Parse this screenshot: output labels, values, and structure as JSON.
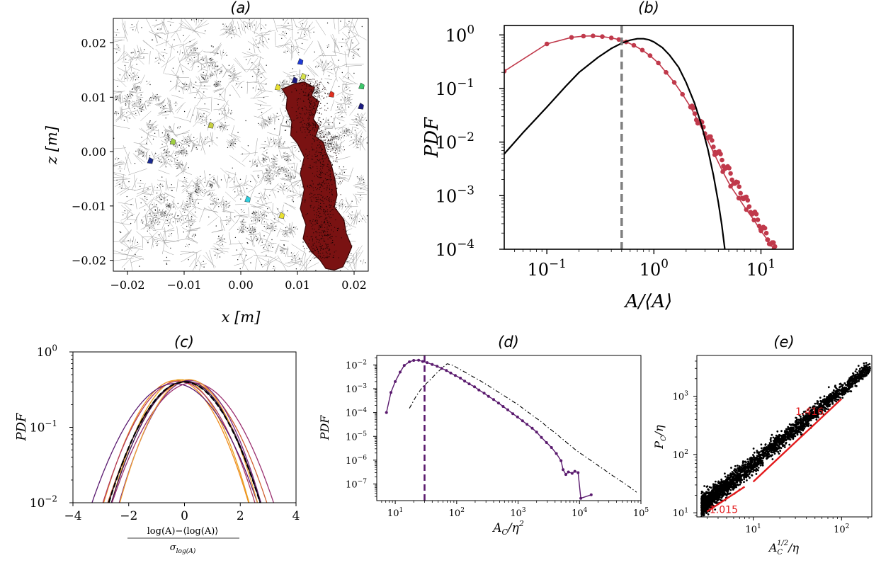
{
  "chart_data": [
    {
      "id": "a",
      "type": "scatter",
      "title": "(a)",
      "xlabel": "x [m]",
      "ylabel": "z [m]",
      "xlim": [
        -0.0225,
        0.0225
      ],
      "ylim": [
        -0.022,
        0.0245
      ],
      "xticks": [
        -0.02,
        -0.01,
        0.0,
        0.01,
        0.02
      ],
      "xtick_labels": [
        "−0.02",
        "−0.01",
        "0.00",
        "0.01",
        "0.02"
      ],
      "yticks": [
        -0.02,
        -0.01,
        0.0,
        0.01,
        0.02
      ],
      "ytick_labels": [
        "−0.02",
        "−0.01",
        "0.00",
        "0.01",
        "0.02"
      ],
      "colors": {
        "cluster": "#7a1212",
        "cluster_edge": "#3a0606"
      },
      "cluster_outline": [
        [
          0.0073,
          0.0115
        ],
        [
          0.0095,
          0.0125
        ],
        [
          0.0112,
          0.0128
        ],
        [
          0.013,
          0.0118
        ],
        [
          0.0125,
          0.0103
        ],
        [
          0.0138,
          0.0092
        ],
        [
          0.0133,
          0.0075
        ],
        [
          0.0128,
          0.006
        ],
        [
          0.0138,
          0.0046
        ],
        [
          0.0132,
          0.0028
        ],
        [
          0.0146,
          0.0017
        ],
        [
          0.015,
          0.0
        ],
        [
          0.016,
          -0.0025
        ],
        [
          0.0166,
          -0.005
        ],
        [
          0.017,
          -0.008
        ],
        [
          0.0165,
          -0.0102
        ],
        [
          0.0182,
          -0.0125
        ],
        [
          0.0186,
          -0.015
        ],
        [
          0.0196,
          -0.0175
        ],
        [
          0.0188,
          -0.0195
        ],
        [
          0.018,
          -0.0212
        ],
        [
          0.0165,
          -0.0218
        ],
        [
          0.015,
          -0.0215
        ],
        [
          0.014,
          -0.02
        ],
        [
          0.0125,
          -0.0185
        ],
        [
          0.011,
          -0.016
        ],
        [
          0.0115,
          -0.0135
        ],
        [
          0.0105,
          -0.0105
        ],
        [
          0.0112,
          -0.007
        ],
        [
          0.0105,
          -0.004
        ],
        [
          0.0112,
          -0.001
        ],
        [
          0.01,
          0.0015
        ],
        [
          0.0088,
          0.003
        ],
        [
          0.009,
          0.0055
        ],
        [
          0.008,
          0.008
        ],
        [
          0.0082,
          0.01
        ]
      ],
      "small_clusters": [
        {
          "x": 0.0105,
          "y": 0.0165,
          "color": "#1f3ad6"
        },
        {
          "x": 0.0095,
          "y": 0.0131,
          "color": "#1a1a80"
        },
        {
          "x": 0.011,
          "y": 0.0138,
          "color": "#d8e44a"
        },
        {
          "x": 0.016,
          "y": 0.0105,
          "color": "#e03020"
        },
        {
          "x": 0.0213,
          "y": 0.012,
          "color": "#3cc86a"
        },
        {
          "x": 0.0212,
          "y": 0.0083,
          "color": "#1a1a80"
        },
        {
          "x": 0.0065,
          "y": 0.0118,
          "color": "#e8e030"
        },
        {
          "x": -0.0053,
          "y": 0.0048,
          "color": "#c8d040"
        },
        {
          "x": -0.012,
          "y": 0.0018,
          "color": "#a0d040"
        },
        {
          "x": -0.016,
          "y": -0.0017,
          "color": "#1a2a90"
        },
        {
          "x": 0.0012,
          "y": -0.0088,
          "color": "#30d0e0"
        },
        {
          "x": 0.0072,
          "y": -0.0118,
          "color": "#e8e030"
        }
      ]
    },
    {
      "id": "b",
      "type": "line",
      "title": "(b)",
      "xlabel": "A/⟨A⟩",
      "ylabel": "PDF",
      "xscale": "log",
      "yscale": "log",
      "xlim": [
        0.04,
        20
      ],
      "ylim": [
        0.0001,
        1.5
      ],
      "xticks": [
        0.1,
        1,
        10
      ],
      "xtick_labels": [
        [
          "10",
          "−1"
        ],
        [
          "10",
          "0"
        ],
        [
          "10",
          "1"
        ]
      ],
      "yticks": [
        0.0001,
        0.001,
        0.01,
        0.1,
        1
      ],
      "ytick_labels": [
        [
          "10",
          "−4"
        ],
        [
          "10",
          "−3"
        ],
        [
          "10",
          "−2"
        ],
        [
          "10",
          "−1"
        ],
        [
          "10",
          "0"
        ]
      ],
      "vline": 0.5,
      "colors": {
        "data": "#c0394b",
        "fit": "#000000",
        "vline": "#7f7f7f"
      },
      "series": [
        {
          "name": "data",
          "x": [
            0.04,
            0.1,
            0.17,
            0.22,
            0.27,
            0.33,
            0.4,
            0.47,
            0.55,
            0.65,
            0.78,
            0.92,
            1.1,
            1.3,
            1.55,
            1.85,
            2.2,
            2.6,
            3.1,
            3.7,
            4.4,
            5.2,
            6.2,
            7.3,
            8.6,
            10.0,
            11.5,
            13.2
          ],
          "y": [
            0.21,
            0.68,
            0.9,
            0.95,
            0.96,
            0.93,
            0.88,
            0.82,
            0.74,
            0.64,
            0.52,
            0.41,
            0.3,
            0.2,
            0.13,
            0.078,
            0.045,
            0.024,
            0.012,
            0.0058,
            0.0028,
            0.0015,
            0.0009,
            0.00055,
            0.00035,
            0.00022,
            0.00015,
            0.0001
          ]
        },
        {
          "name": "fit",
          "x": [
            0.04,
            0.06,
            0.1,
            0.15,
            0.2,
            0.3,
            0.4,
            0.5,
            0.6,
            0.7,
            0.8,
            0.9,
            1.0,
            1.2,
            1.4,
            1.7,
            2.0,
            2.4,
            2.8,
            3.2,
            3.6,
            4.0,
            4.3,
            4.6
          ],
          "y": [
            0.006,
            0.015,
            0.045,
            0.11,
            0.2,
            0.38,
            0.56,
            0.7,
            0.8,
            0.85,
            0.85,
            0.81,
            0.74,
            0.58,
            0.42,
            0.25,
            0.13,
            0.053,
            0.02,
            0.0072,
            0.0024,
            0.00075,
            0.00029,
            0.0001
          ]
        }
      ]
    },
    {
      "id": "c",
      "type": "line",
      "title": "(c)",
      "xlabel_num": "log(A)−⟨log(A)⟩",
      "xlabel_den": "σ",
      "xlabel_den_sub": "log(A)",
      "ylabel": "PDF",
      "yscale": "log",
      "xlim": [
        -4,
        4
      ],
      "ylim": [
        0.01,
        1
      ],
      "xticks": [
        -4,
        -2,
        0,
        2,
        4
      ],
      "xtick_labels": [
        "−4",
        "−2",
        "0",
        "2",
        "4"
      ],
      "yticks": [
        0.01,
        0.1,
        1
      ],
      "ytick_labels": [
        [
          "10",
          "−2"
        ],
        [
          "10",
          "−1"
        ],
        [
          "10",
          "0"
        ]
      ],
      "series": [
        {
          "name": "s1",
          "color": "#f08c1e",
          "mean": -0.3,
          "sigma": 0.95,
          "amp": 0.42
        },
        {
          "name": "s2",
          "color": "#e8a020",
          "mean": -0.15,
          "sigma": 0.9,
          "amp": 0.43
        },
        {
          "name": "s3",
          "color": "#d06030",
          "mean": 0.1,
          "sigma": 1.05,
          "amp": 0.4
        },
        {
          "name": "s4",
          "color": "#b03a60",
          "mean": -0.2,
          "sigma": 1.0,
          "amp": 0.41
        },
        {
          "name": "s5",
          "color": "#7a2a80",
          "mean": 0.2,
          "sigma": 0.93,
          "amp": 0.42
        },
        {
          "name": "s6",
          "color": "#5a1a70",
          "mean": -0.35,
          "sigma": 1.1,
          "amp": 0.38
        },
        {
          "name": "s7",
          "color": "#3a0f50",
          "mean": 0.05,
          "sigma": 0.98,
          "amp": 0.41
        },
        {
          "name": "s8",
          "color": "#9a3070",
          "mean": 0.3,
          "sigma": 1.07,
          "amp": 0.39
        },
        {
          "name": "s9",
          "color": "#f0a030",
          "mean": 0.15,
          "sigma": 0.9,
          "amp": 0.43
        },
        {
          "name": "s10",
          "color": "#1a1020",
          "mean": 0.0,
          "sigma": 1.0,
          "amp": 0.4
        },
        {
          "name": "gaussian",
          "color": "#000000",
          "dashed": true,
          "mean": 0.0,
          "sigma": 1.0,
          "amp": 0.399
        }
      ]
    },
    {
      "id": "d",
      "type": "line",
      "title": "(d)",
      "xlabel": "A",
      "xlabel_sub": "C",
      "xlabel_rest": "/η",
      "xlabel_sup": "2",
      "ylabel": "PDF",
      "xscale": "log",
      "yscale": "log",
      "xlim": [
        5,
        100000
      ],
      "ylim": [
        2e-08,
        0.025
      ],
      "xticks": [
        10,
        100,
        1000,
        10000,
        100000
      ],
      "xtick_labels": [
        [
          "10",
          "1"
        ],
        [
          "10",
          "2"
        ],
        [
          "10",
          "3"
        ],
        [
          "10",
          "4"
        ],
        [
          "10",
          "5"
        ]
      ],
      "yticks": [
        1e-07,
        1e-06,
        1e-05,
        0.0001,
        0.001,
        0.01
      ],
      "ytick_labels": [
        [
          "10",
          "−7"
        ],
        [
          "10",
          "−6"
        ],
        [
          "10",
          "−5"
        ],
        [
          "10",
          "−4"
        ],
        [
          "10",
          "−3"
        ],
        [
          "10",
          "−2"
        ]
      ],
      "vline": 30,
      "colors": {
        "data": "#5a1a6e",
        "dashdot": "#000000"
      },
      "series": [
        {
          "name": "data",
          "x": [
            7.2,
            8.5,
            10,
            12,
            14,
            17,
            20,
            24,
            28,
            33,
            40,
            48,
            57,
            68,
            80,
            95,
            115,
            135,
            160,
            195,
            230,
            280,
            330,
            400,
            480,
            570,
            680,
            820,
            980,
            1180,
            1400,
            1700,
            2000,
            2400,
            2900,
            3500,
            4200,
            5000,
            5400,
            6000,
            6600,
            7600,
            8400,
            9500,
            10500,
            15500
          ],
          "y": [
            0.0001,
            0.0007,
            0.002,
            0.005,
            0.0095,
            0.0135,
            0.0155,
            0.0158,
            0.014,
            0.0125,
            0.0105,
            0.0088,
            0.0072,
            0.0058,
            0.0046,
            0.0036,
            0.0028,
            0.0021,
            0.0016,
            0.0012,
            0.00089,
            0.00065,
            0.00048,
            0.00035,
            0.00025,
            0.00018,
            0.00013,
            9e-05,
            6.5e-05,
            4.5e-05,
            3.2e-05,
            2.2e-05,
            1.5e-05,
            9e-06,
            5.5e-06,
            3.4e-06,
            1.9e-06,
            9.5e-07,
            4e-07,
            2.5e-07,
            3.2e-07,
            2.8e-07,
            3.4e-07,
            3e-07,
            2.5e-08,
            3.5e-08
          ]
        },
        {
          "name": "dash-dot",
          "x": [
            17,
            22,
            28,
            36,
            46,
            58,
            70,
            85,
            110,
            140,
            180,
            240,
            320,
            420,
            560,
            740,
            980,
            1300,
            1700,
            2300,
            3000,
            4000,
            5300,
            7000,
            9000,
            12000,
            16000,
            21000,
            28000,
            37000,
            50000,
            65000,
            85000
          ],
          "y": [
            0.00015,
            0.0005,
            0.0012,
            0.0022,
            0.0042,
            0.0075,
            0.0112,
            0.0098,
            0.0068,
            0.0048,
            0.0033,
            0.0022,
            0.0014,
            0.00089,
            0.00056,
            0.00035,
            0.00022,
            0.00013,
            7.7e-05,
            4.4e-05,
            2.5e-05,
            1.4e-05,
            7.7e-06,
            4.2e-06,
            2.5e-06,
            1.5e-06,
            9e-07,
            5.5e-07,
            3.3e-07,
            2e-07,
            1.2e-07,
            7.5e-08,
            4.5e-08
          ]
        }
      ]
    },
    {
      "id": "e",
      "type": "scatter",
      "title": "(e)",
      "xlabel": "A",
      "xlabel_sub": "C",
      "xlabel_sup": "1/2",
      "xlabel_rest": "/η",
      "ylabel": "P",
      "ylabel_sub": "C",
      "ylabel_rest": "/η",
      "xscale": "log",
      "yscale": "log",
      "xlim": [
        2.3,
        220
      ],
      "ylim": [
        8.5,
        5000
      ],
      "xticks": [
        10,
        100
      ],
      "xtick_labels": [
        [
          "10",
          "1"
        ],
        [
          "10",
          "2"
        ]
      ],
      "yticks": [
        10,
        100,
        1000
      ],
      "ytick_labels": [
        [
          "10",
          "1"
        ],
        [
          "10",
          "2"
        ],
        [
          "10",
          "3"
        ]
      ],
      "slope_labels": [
        "1.015",
        "1.416"
      ],
      "fit_lines": [
        {
          "slope": 1.015,
          "x": [
            3,
            8
          ],
          "y": [
            10.5,
            28
          ]
        },
        {
          "slope": 1.416,
          "x": [
            10,
            100
          ],
          "y": [
            34,
            900
          ]
        }
      ],
      "cloud": {
        "x_range": [
          2.6,
          210
        ],
        "exponent": 1.25,
        "y_at_10": 70
      },
      "colors": {
        "points": "#000000",
        "fit": "#e31a1c"
      }
    }
  ]
}
